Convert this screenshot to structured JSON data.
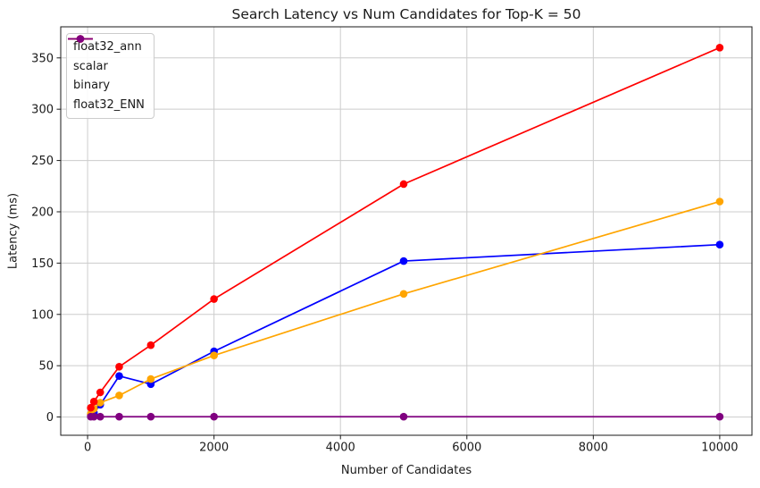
{
  "title": "Search Latency vs Num Candidates for Top-K = 50",
  "chart_data": {
    "type": "line",
    "title": "Search Latency vs Num Candidates for Top-K = 50",
    "xlabel": "Number of Candidates",
    "ylabel": "Latency (ms)",
    "x": [
      50,
      100,
      200,
      500,
      1000,
      2000,
      5000,
      10000
    ],
    "series": [
      {
        "name": "float32_ann",
        "color": "#0000ff",
        "values": [
          2,
          4,
          12,
          40,
          32,
          64,
          152,
          168
        ]
      },
      {
        "name": "scalar",
        "color": "#ffa500",
        "values": [
          3,
          8,
          14,
          21,
          37,
          60,
          120,
          210
        ]
      },
      {
        "name": "binary",
        "color": "#ff0000",
        "values": [
          9,
          15,
          24,
          49,
          70,
          115,
          227,
          360
        ]
      },
      {
        "name": "float32_ENN",
        "color": "#800080",
        "values": [
          0.3,
          0.3,
          0.3,
          0.3,
          0.3,
          0.3,
          0.3,
          0.3
        ]
      }
    ],
    "x_ticks": [
      0,
      2000,
      4000,
      6000,
      8000,
      10000
    ],
    "x_tick_labels": [
      "0",
      "2000",
      "4000",
      "6000",
      "8000",
      "10000"
    ],
    "y_ticks": [
      0,
      50,
      100,
      150,
      200,
      250,
      300,
      350
    ],
    "y_tick_labels": [
      "0",
      "50",
      "100",
      "150",
      "200",
      "250",
      "300",
      "350"
    ],
    "xlim": [
      -425,
      10510
    ],
    "ylim": [
      -17.8,
      380.3
    ],
    "grid": true,
    "legend_position": "upper left",
    "marker": "circle"
  },
  "colors": {
    "background": "#ffffff",
    "grid": "#cccccc",
    "spine": "#1a1a1a",
    "tick_text": "#1a1a1a"
  }
}
